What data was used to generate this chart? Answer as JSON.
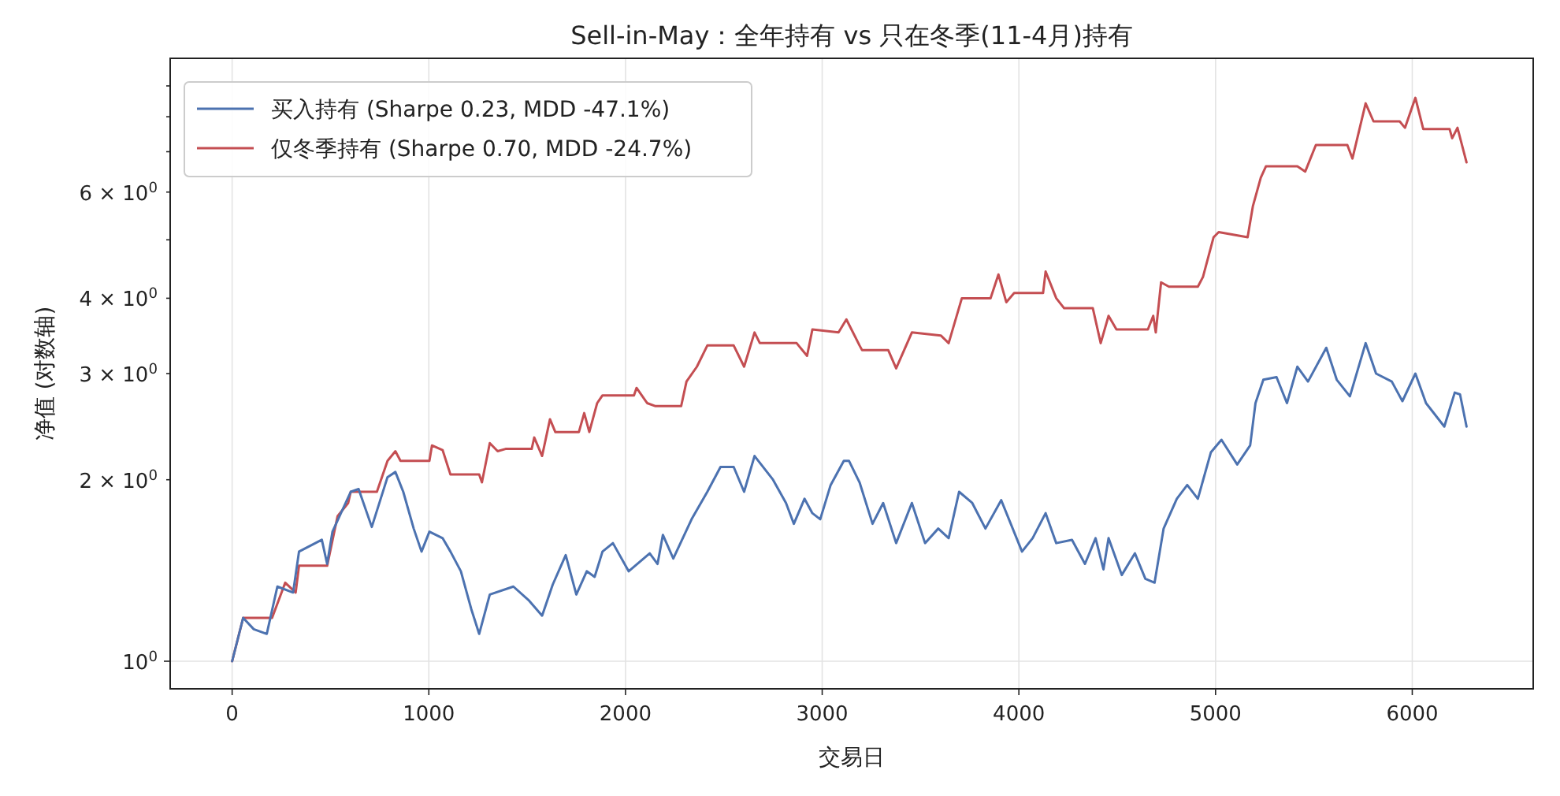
{
  "chart_data": {
    "type": "line",
    "title": "Sell-in-May：全年持有 vs 只在冬季(11-4月)持有",
    "xlabel": "交易日",
    "ylabel": "净值 (对数轴)",
    "log": "y",
    "grid": true,
    "legend": "top left",
    "xlim": [
      -315,
      6615
    ],
    "xticks": [
      0,
      1000,
      2000,
      3000,
      4000,
      5000,
      6000
    ],
    "ylim": [
      0.9,
      10
    ],
    "yticks": [
      {
        "value": 1,
        "label": "10$^{0}$"
      },
      {
        "value": 2,
        "label": "2 × 10$^{0}$"
      },
      {
        "value": 3,
        "label": "3 × 10$^{0}$"
      },
      {
        "value": 4,
        "label": "4 × 10$^{0}$"
      },
      {
        "value": 5,
        "label": null
      },
      {
        "value": 6,
        "label": "6 × 10$^{0}$"
      },
      {
        "value": 7,
        "label": null
      },
      {
        "value": 8,
        "label": null
      },
      {
        "value": 9,
        "label": null
      }
    ],
    "series": [
      {
        "name": "买入持有 (Sharpe 0.23, MDD -47.1%)",
        "color": "#4c72b0",
        "x": [
          0,
          56,
          110,
          176,
          230,
          310,
          340,
          456,
          483,
          510,
          603,
          643,
          710,
          790,
          830,
          870,
          923,
          963,
          1003,
          1070,
          1110,
          1163,
          1216,
          1256,
          1310,
          1430,
          1510,
          1576,
          1630,
          1696,
          1750,
          1803,
          1843,
          1883,
          1936,
          2016,
          2123,
          2163,
          2190,
          2243,
          2336,
          2416,
          2483,
          2550,
          2603,
          2656,
          2750,
          2816,
          2856,
          2910,
          2950,
          2990,
          3043,
          3110,
          3136,
          3190,
          3256,
          3310,
          3376,
          3456,
          3523,
          3590,
          3643,
          3696,
          3763,
          3830,
          3910,
          4016,
          4070,
          4136,
          4190,
          4270,
          4336,
          4390,
          4430,
          4456,
          4523,
          4590,
          4643,
          4690,
          4736,
          4803,
          4856,
          4910,
          4976,
          5030,
          5110,
          5176,
          5203,
          5243,
          5310,
          5363,
          5416,
          5470,
          5563,
          5616,
          5683,
          5763,
          5816,
          5896,
          5950,
          6016,
          6070,
          6163,
          6216,
          6243,
          6276
        ],
        "values": [
          1.0,
          1.18,
          1.13,
          1.11,
          1.33,
          1.3,
          1.52,
          1.59,
          1.45,
          1.64,
          1.91,
          1.93,
          1.67,
          2.02,
          2.06,
          1.91,
          1.66,
          1.52,
          1.64,
          1.6,
          1.52,
          1.41,
          1.22,
          1.11,
          1.29,
          1.33,
          1.26,
          1.19,
          1.34,
          1.5,
          1.29,
          1.41,
          1.38,
          1.52,
          1.57,
          1.41,
          1.51,
          1.45,
          1.62,
          1.48,
          1.72,
          1.91,
          2.1,
          2.1,
          1.91,
          2.19,
          2.0,
          1.83,
          1.69,
          1.86,
          1.76,
          1.72,
          1.96,
          2.15,
          2.15,
          1.98,
          1.69,
          1.83,
          1.57,
          1.83,
          1.57,
          1.66,
          1.6,
          1.91,
          1.83,
          1.66,
          1.85,
          1.52,
          1.6,
          1.76,
          1.57,
          1.59,
          1.45,
          1.6,
          1.42,
          1.6,
          1.39,
          1.51,
          1.37,
          1.35,
          1.66,
          1.86,
          1.96,
          1.86,
          2.22,
          2.33,
          2.12,
          2.28,
          2.68,
          2.93,
          2.96,
          2.68,
          3.08,
          2.91,
          3.31,
          2.93,
          2.75,
          3.37,
          3.0,
          2.91,
          2.7,
          3.0,
          2.68,
          2.45,
          2.79,
          2.77,
          2.45
        ]
      },
      {
        "name": "仅冬季持有 (Sharpe 0.70, MDD -24.7%)",
        "color": "#c44e52",
        "x": [
          0,
          56,
          203,
          270,
          323,
          340,
          483,
          536,
          590,
          603,
          736,
          790,
          830,
          856,
          1003,
          1016,
          1070,
          1110,
          1256,
          1270,
          1310,
          1350,
          1390,
          1523,
          1536,
          1576,
          1616,
          1643,
          1763,
          1790,
          1816,
          1856,
          1883,
          2043,
          2056,
          2110,
          2150,
          2283,
          2310,
          2363,
          2416,
          2550,
          2603,
          2656,
          2683,
          2870,
          2923,
          2950,
          3083,
          3123,
          3190,
          3203,
          3336,
          3376,
          3456,
          3603,
          3643,
          3710,
          3856,
          3896,
          3936,
          3976,
          4123,
          4136,
          4190,
          4230,
          4376,
          4416,
          4456,
          4496,
          4656,
          4683,
          4696,
          4723,
          4763,
          4910,
          4936,
          4990,
          5016,
          5163,
          5190,
          5230,
          5256,
          5416,
          5456,
          5510,
          5670,
          5696,
          5763,
          5803,
          5936,
          5963,
          6016,
          6056,
          6190,
          6203,
          6230,
          6276
        ],
        "values": [
          1.0,
          1.18,
          1.18,
          1.35,
          1.3,
          1.44,
          1.44,
          1.74,
          1.83,
          1.91,
          1.91,
          2.15,
          2.23,
          2.15,
          2.15,
          2.28,
          2.24,
          2.04,
          2.04,
          1.98,
          2.3,
          2.23,
          2.25,
          2.25,
          2.35,
          2.19,
          2.52,
          2.4,
          2.4,
          2.58,
          2.4,
          2.68,
          2.76,
          2.76,
          2.84,
          2.68,
          2.65,
          2.65,
          2.91,
          3.08,
          3.34,
          3.34,
          3.08,
          3.51,
          3.37,
          3.37,
          3.21,
          3.55,
          3.51,
          3.69,
          3.34,
          3.28,
          3.28,
          3.06,
          3.51,
          3.47,
          3.37,
          4.0,
          4.0,
          4.38,
          3.94,
          4.08,
          4.08,
          4.43,
          4.0,
          3.85,
          3.85,
          3.37,
          3.74,
          3.55,
          3.55,
          3.74,
          3.51,
          4.25,
          4.18,
          4.18,
          4.34,
          5.05,
          5.15,
          5.05,
          5.69,
          6.34,
          6.62,
          6.62,
          6.49,
          7.18,
          7.18,
          6.82,
          8.42,
          7.86,
          7.86,
          7.67,
          8.6,
          7.63,
          7.63,
          7.37,
          7.67,
          6.72
        ]
      }
    ]
  }
}
